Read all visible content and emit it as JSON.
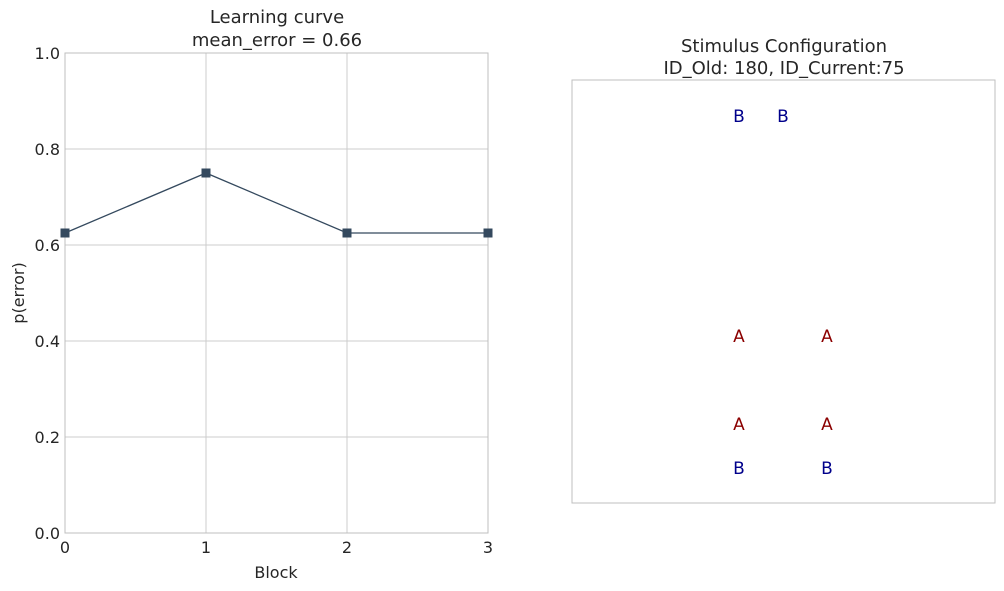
{
  "chart_data": [
    {
      "type": "line",
      "title": "Learning curve",
      "subtitle": "mean_error = 0.66",
      "xlabel": "Block",
      "ylabel": "p(error)",
      "x": [
        0,
        1,
        2,
        3
      ],
      "y": [
        0.625,
        0.75,
        0.625,
        0.625
      ],
      "xlim": [
        0,
        3
      ],
      "ylim": [
        0.0,
        1.0
      ],
      "xticks": [
        "0",
        "1",
        "2",
        "3"
      ],
      "yticks": [
        "0.0",
        "0.2",
        "0.4",
        "0.6",
        "0.8",
        "1.0"
      ],
      "grid": true,
      "marker": "square",
      "color": "#34495e"
    },
    {
      "type": "scatter",
      "title": "Stimulus Configuration",
      "subtitle": "ID_Old: 180, ID_Current:75",
      "grid": false,
      "points": [
        {
          "label": "B",
          "col": 0,
          "row": 0,
          "color": "#00008b"
        },
        {
          "label": "B",
          "col": 1,
          "row": 0,
          "color": "#00008b"
        },
        {
          "label": "A",
          "col": 0,
          "row": 5,
          "color": "#8b0000"
        },
        {
          "label": "A",
          "col": 2,
          "row": 5,
          "color": "#8b0000"
        },
        {
          "label": "A",
          "col": 0,
          "row": 7,
          "color": "#8b0000"
        },
        {
          "label": "A",
          "col": 2,
          "row": 7,
          "color": "#8b0000"
        },
        {
          "label": "B",
          "col": 0,
          "row": 8,
          "color": "#00008b"
        },
        {
          "label": "B",
          "col": 2,
          "row": 8,
          "color": "#00008b"
        }
      ]
    }
  ]
}
